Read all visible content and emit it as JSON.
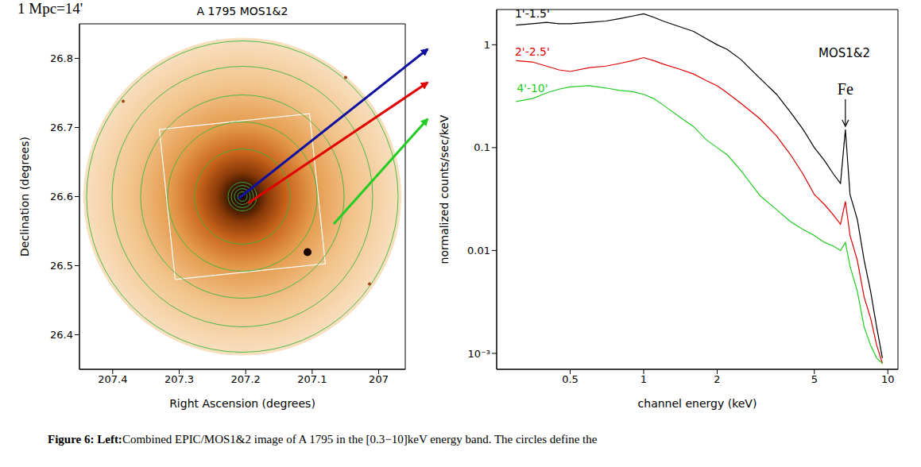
{
  "header": {
    "text": "1 Mpc=14'"
  },
  "chart_data": [
    {
      "type": "image",
      "title": "A 1795 MOS1&2",
      "xlabel": "Right Ascension (degrees)",
      "ylabel": "Declination (degrees)",
      "xlim": [
        207.45,
        206.96
      ],
      "xticks": [
        207.4,
        207.3,
        207.2,
        207.1,
        207
      ],
      "ylim": [
        26.35,
        26.85
      ],
      "yticks": [
        26.4,
        26.5,
        26.6,
        26.7,
        26.8
      ]
    },
    {
      "type": "line",
      "log": true,
      "xlabel": "channel energy (keV)",
      "ylabel": "normalized counts/sec/keV",
      "xlim": [
        0.25,
        11
      ],
      "xticks": [
        0.5,
        1,
        2,
        5,
        10
      ],
      "ylim": [
        0.0007,
        2.2
      ],
      "yticks": [
        {
          "value": 0.001,
          "label": "10⁻³"
        },
        0.01,
        0.1,
        1
      ],
      "x": [
        0.3,
        0.35,
        0.4,
        0.45,
        0.5,
        0.6,
        0.7,
        0.8,
        0.9,
        1.0,
        1.1,
        1.2,
        1.4,
        1.6,
        1.8,
        2.0,
        2.2,
        2.5,
        3,
        3.5,
        4,
        4.5,
        5,
        5.5,
        6,
        6.4,
        6.7,
        7,
        7.5,
        8,
        8.5,
        9,
        9.5
      ],
      "series": [
        {
          "name": "1'-1.5'",
          "color": "#000000",
          "values": [
            1.55,
            1.6,
            1.65,
            1.6,
            1.6,
            1.65,
            1.7,
            1.8,
            1.9,
            2.0,
            1.85,
            1.7,
            1.5,
            1.35,
            1.15,
            1.0,
            0.9,
            0.72,
            0.47,
            0.33,
            0.22,
            0.15,
            0.1,
            0.075,
            0.055,
            0.045,
            0.15,
            0.035,
            0.02,
            0.008,
            0.004,
            0.0018,
            0.0009
          ]
        },
        {
          "name": "2'-2.5'",
          "color": "#e00000",
          "values": [
            0.7,
            0.68,
            0.62,
            0.57,
            0.55,
            0.6,
            0.62,
            0.66,
            0.7,
            0.75,
            0.7,
            0.65,
            0.58,
            0.52,
            0.45,
            0.4,
            0.34,
            0.27,
            0.19,
            0.13,
            0.085,
            0.055,
            0.035,
            0.028,
            0.022,
            0.018,
            0.03,
            0.014,
            0.008,
            0.0035,
            0.0022,
            0.0012,
            0.0008
          ]
        },
        {
          "name": "4'-10'",
          "color": "#22cc22",
          "values": [
            0.28,
            0.3,
            0.34,
            0.37,
            0.39,
            0.4,
            0.38,
            0.36,
            0.35,
            0.33,
            0.3,
            0.26,
            0.2,
            0.16,
            0.12,
            0.1,
            0.085,
            0.06,
            0.034,
            0.025,
            0.019,
            0.016,
            0.014,
            0.012,
            0.011,
            0.01,
            0.012,
            0.007,
            0.004,
            0.0018,
            0.0012,
            0.0009,
            0.0008
          ]
        }
      ],
      "annotations": [
        {
          "text": "MOS1&2"
        },
        {
          "text": "Fe",
          "x": 6.7,
          "y": 0.15
        }
      ]
    }
  ],
  "caption": {
    "label": "Figure 6:",
    "panel": "Left:",
    "text": "Combined EPIC/MOS1&2 image of A 1795 in the [0.3−10]keV energy band. The circles define the"
  }
}
